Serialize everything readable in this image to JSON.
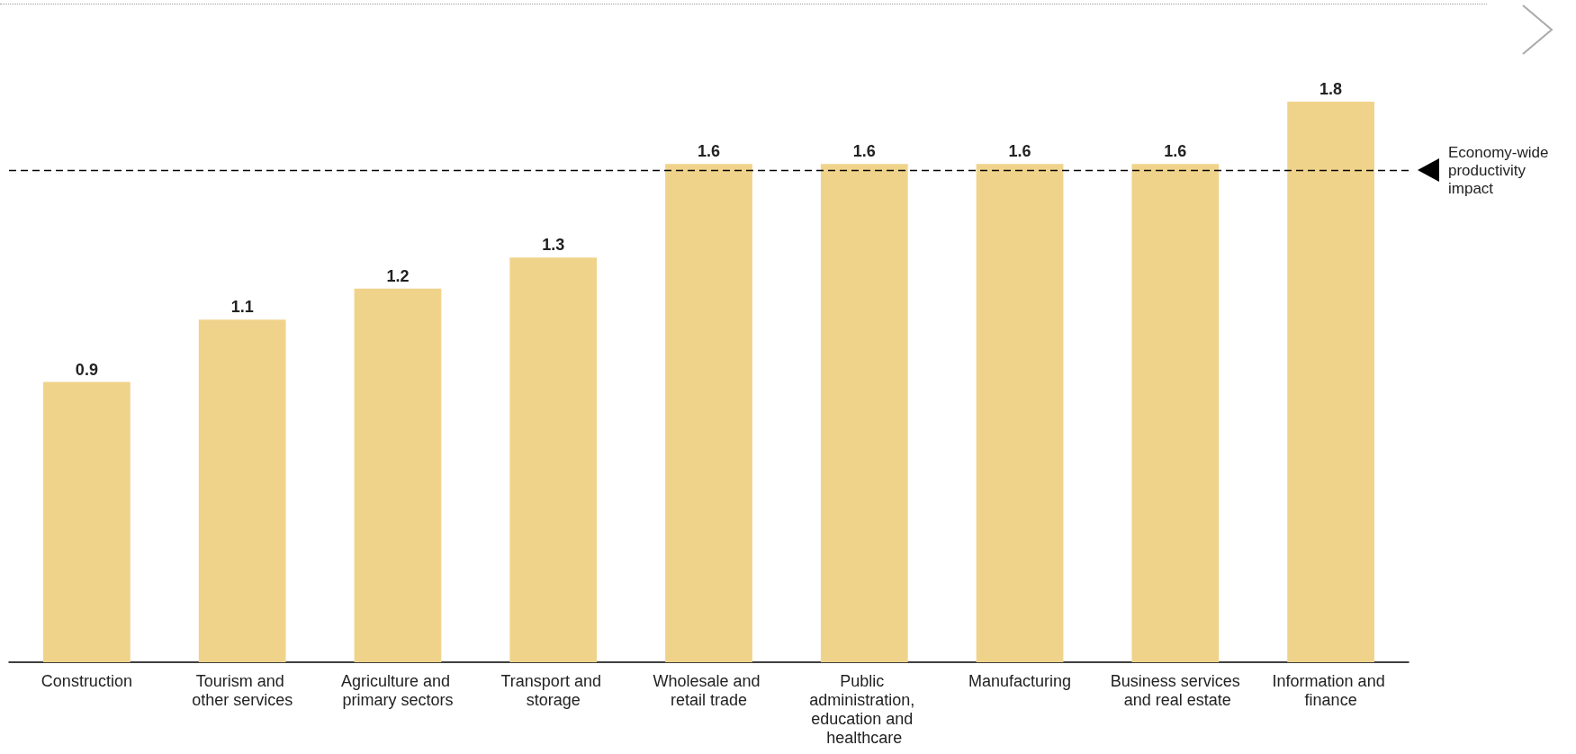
{
  "chart_data": {
    "type": "bar",
    "categories": [
      "Construction",
      "Tourism and other services",
      "Agriculture and primary sectors",
      "Transport and storage",
      "Wholesale and retail trade",
      "Public administration, education and healthcare",
      "Manufacturing",
      "Business services and real estate",
      "Information and finance"
    ],
    "values": [
      0.9,
      1.1,
      1.2,
      1.3,
      1.6,
      1.6,
      1.6,
      1.6,
      1.8
    ],
    "color": "#f0d38b",
    "data_labels": true,
    "ref_lines": [
      {
        "axis": "y",
        "value": 1.58,
        "label": "Economy-wide productivity impact",
        "color": "#000000",
        "line_style": "dashed"
      }
    ]
  }
}
